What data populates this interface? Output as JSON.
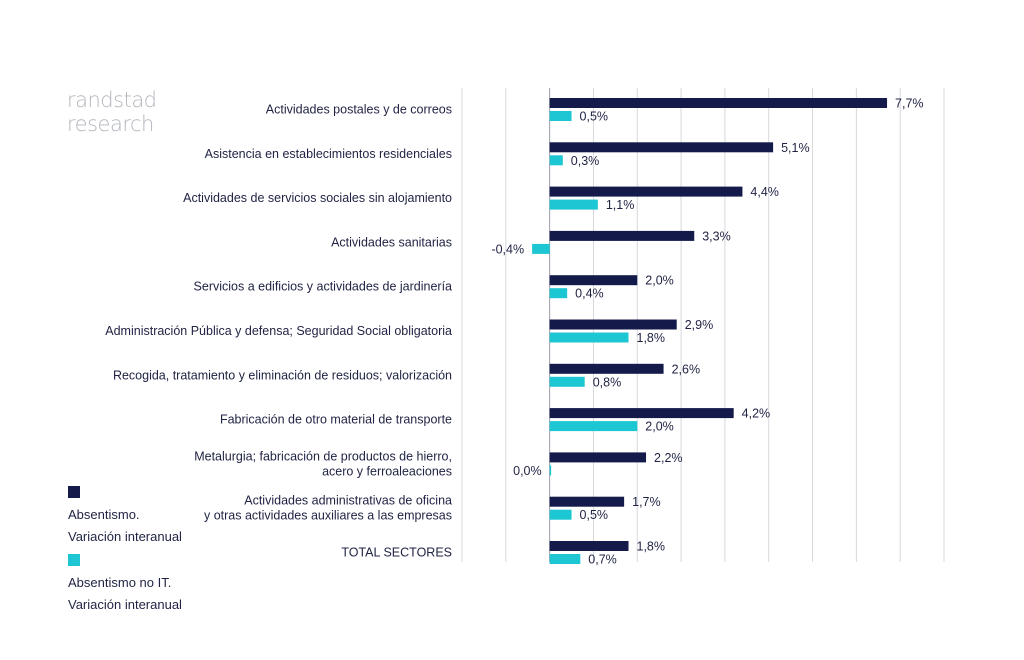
{
  "logo": {
    "line1": "randstad",
    "line2": "research"
  },
  "legend": [
    {
      "line1": "Absentismo.",
      "line2": "Variación interanual",
      "color": "#141a4a"
    },
    {
      "line1": "Absentismo no IT.",
      "line2": "Variación interanual",
      "color": "#1cc6d2"
    }
  ],
  "chart_data": {
    "type": "bar",
    "orientation": "horizontal",
    "categories": [
      [
        "Actividades postales y de correos"
      ],
      [
        "Asistencia en establecimientos residenciales"
      ],
      [
        "Actividades de servicios sociales sin alojamiento"
      ],
      [
        "Actividades sanitarias"
      ],
      [
        "Servicios a edificios y actividades de jardinería"
      ],
      [
        "Administración Pública y defensa; Seguridad Social obligatoria"
      ],
      [
        "Recogida, tratamiento y eliminación de residuos; valorización"
      ],
      [
        "Fabricación de otro material de transporte"
      ],
      [
        "Metalurgia; fabricación de productos de hierro,",
        "acero y ferroaleaciones"
      ],
      [
        "Actividades administrativas de oficina",
        "y otras actividades auxiliares a las empresas"
      ],
      [
        "TOTAL SECTORES"
      ]
    ],
    "series": [
      {
        "name": "Absentismo. Variación interanual",
        "color": "#141a4a",
        "values": [
          7.7,
          5.1,
          4.4,
          3.3,
          2.0,
          2.9,
          2.6,
          4.2,
          2.2,
          1.7,
          1.8
        ],
        "labels": [
          "7,7%",
          "5,1%",
          "4,4%",
          "3,3%",
          "2,0%",
          "2,9%",
          "2,6%",
          "4,2%",
          "2,2%",
          "1,7%",
          "1,8%"
        ]
      },
      {
        "name": "Absentismo no IT. Variación interanual",
        "color": "#1cc6d2",
        "values": [
          0.5,
          0.3,
          1.1,
          -0.4,
          0.4,
          1.8,
          0.8,
          2.0,
          0.0,
          0.5,
          0.7
        ],
        "labels": [
          "0,5%",
          "0,3%",
          "1,1%",
          "-0,4%",
          "0,4%",
          "1,8%",
          "0,8%",
          "2,0%",
          "0,0%",
          "0,5%",
          "0,7%"
        ]
      }
    ],
    "xlim": [
      -2,
      9
    ],
    "grid": true,
    "legend_position": "bottom-left"
  }
}
